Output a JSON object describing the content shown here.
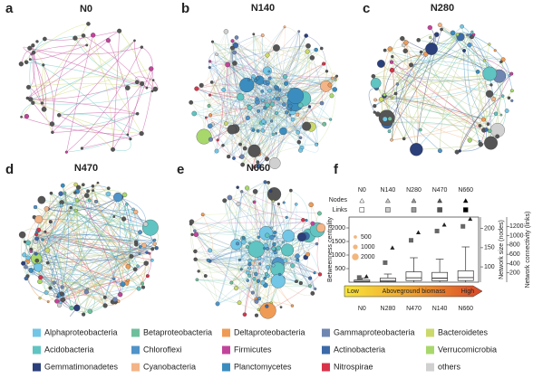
{
  "panels": [
    {
      "label": "a",
      "title": "N0"
    },
    {
      "label": "b",
      "title": "N140"
    },
    {
      "label": "c",
      "title": "N280"
    },
    {
      "label": "d",
      "title": "N470"
    },
    {
      "label": "e",
      "title": "N660"
    }
  ],
  "legend": [
    {
      "name": "Alphaproteobacteria",
      "color": "#72c6e6"
    },
    {
      "name": "Betaproteobacteria",
      "color": "#6fbf9c"
    },
    {
      "name": "Deltaproteobacteria",
      "color": "#ef9b55"
    },
    {
      "name": "Gammaproteobacteria",
      "color": "#6f86b2"
    },
    {
      "name": "Bacteroidetes",
      "color": "#cbd96b"
    },
    {
      "name": "Acidobacteria",
      "color": "#5fc4c2"
    },
    {
      "name": "Chloroflexi",
      "color": "#4f93c8"
    },
    {
      "name": "Firmicutes",
      "color": "#c2449a"
    },
    {
      "name": "Actinobacteria",
      "color": "#3c6aa8"
    },
    {
      "name": "Verrucomicrobia",
      "color": "#a8d86c"
    },
    {
      "name": "Gemmatimonadetes",
      "color": "#2b3f7a"
    },
    {
      "name": "Cyanobacteria",
      "color": "#f3b487"
    },
    {
      "name": "Planctomycetes",
      "color": "#3b8dbf"
    },
    {
      "name": "Nitrospirae",
      "color": "#d9334a"
    },
    {
      "name": "others",
      "color": "#d0d0d0"
    }
  ],
  "chart_data": {
    "type": "box",
    "label": "f",
    "header": [
      "N0",
      "N140",
      "N280",
      "N470",
      "N660"
    ],
    "nodes_label": "Nodes",
    "links_label": "Links",
    "categories": [
      "N0",
      "N280",
      "N470",
      "N140",
      "N660"
    ],
    "y_label": "Betweenness centrality",
    "ylim": [
      0,
      2400
    ],
    "yticks": [
      500,
      1000,
      1500,
      2000
    ],
    "size_legend": [
      500,
      1000,
      2000
    ],
    "whisker_low": [
      0,
      0,
      0,
      0,
      0
    ],
    "q1": [
      10,
      20,
      60,
      50,
      60
    ],
    "median": [
      30,
      60,
      160,
      150,
      170
    ],
    "q3": [
      80,
      150,
      380,
      360,
      420
    ],
    "whisker_high": [
      150,
      300,
      900,
      850,
      1300
    ],
    "y2_label": "Network size (nodes)",
    "y2lim": [
      60,
      230
    ],
    "y2ticks": [
      100,
      150,
      200
    ],
    "y3_label": "Network connectivity (links)",
    "y3lim": [
      0,
      1400
    ],
    "y3ticks": [
      200,
      400,
      600,
      800,
      1000,
      1200
    ],
    "nodes": [
      75,
      150,
      190,
      210,
      225
    ],
    "links": [
      100,
      420,
      900,
      1100,
      1200
    ],
    "arrow_low": "Low",
    "arrow_label": "Aboveground biomass",
    "arrow_high": "High"
  }
}
